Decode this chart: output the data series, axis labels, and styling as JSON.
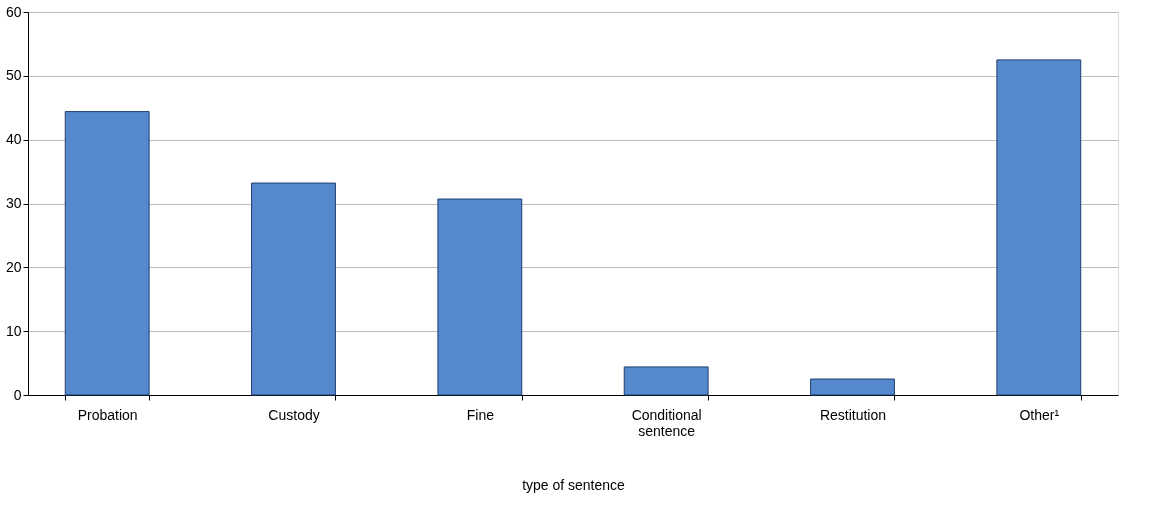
{
  "chart_data": {
    "type": "bar",
    "xlabel": "type of sentence",
    "categories": [
      "Probation",
      "Custody",
      "Fine",
      "Conditional sentence",
      "Restitution",
      "Other¹"
    ],
    "values": [
      44.4,
      33.2,
      30.7,
      4.4,
      2.5,
      52.5
    ],
    "color": "#5588cc",
    "ylim": [
      0,
      60
    ],
    "yticks": [
      0,
      10,
      20,
      30,
      40,
      50,
      60
    ],
    "grid": "y"
  }
}
